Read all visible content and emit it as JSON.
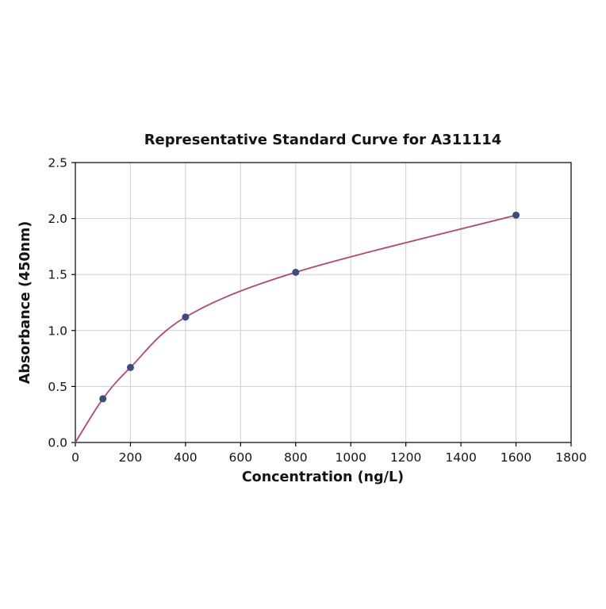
{
  "chart_data": {
    "type": "scatter",
    "title": "Representative Standard Curve for A311114",
    "xlabel": "Concentration (ng/L)",
    "ylabel": "Absorbance (450nm)",
    "xlim": [
      0,
      1800
    ],
    "ylim": [
      0,
      2.5
    ],
    "x_ticks": [
      0,
      200,
      400,
      600,
      800,
      1000,
      1200,
      1400,
      1600,
      1800
    ],
    "x_tick_labels": [
      "0",
      "200",
      "400",
      "600",
      "800",
      "1000",
      "1200",
      "1400",
      "1600",
      "1800"
    ],
    "y_ticks": [
      0,
      0.5,
      1.0,
      1.5,
      2.0,
      2.5
    ],
    "y_tick_labels": [
      "0.0",
      "0.5",
      "1.0",
      "1.5",
      "2.0",
      "2.5"
    ],
    "grid": true,
    "legend": "none",
    "points": {
      "x": [
        100,
        200,
        400,
        800,
        1600
      ],
      "y": [
        0.39,
        0.67,
        1.12,
        1.52,
        2.03
      ]
    },
    "curve": {
      "x": [
        0,
        100,
        200,
        400,
        800,
        1600
      ],
      "y": [
        0.0,
        0.39,
        0.67,
        1.12,
        1.52,
        2.03
      ]
    },
    "colors": {
      "curve": "#b5476b",
      "point": "#3c4d7a",
      "grid": "#cfcfcf",
      "axis": "#000000",
      "text": "#141414",
      "background": "#ffffff"
    }
  }
}
